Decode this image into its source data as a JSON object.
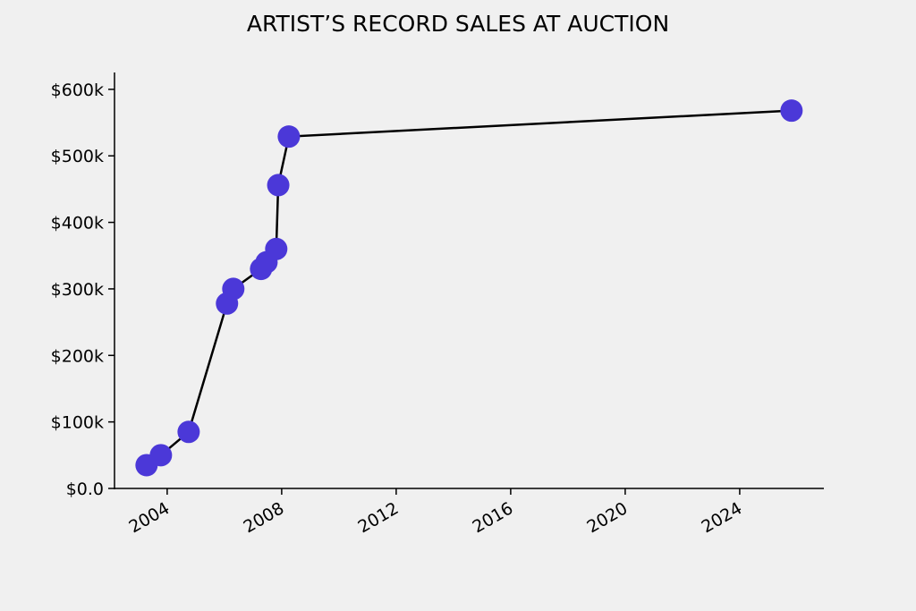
{
  "chart_data": {
    "type": "line",
    "title": "ARTIST’S RECORD SALES AT AUCTION",
    "x": [
      2003.28,
      2003.78,
      2004.75,
      2006.09,
      2006.31,
      2007.28,
      2007.47,
      2007.81,
      2007.88,
      2008.25,
      2025.81
    ],
    "values": [
      35000,
      50000,
      85000,
      278000,
      300000,
      330000,
      340000,
      360000,
      456000,
      529000,
      568000
    ],
    "color": "#4b38d8",
    "line_color": "#000000",
    "xlim": [
      2002.16,
      2026.94
    ],
    "xticks": [
      2004,
      2008,
      2012,
      2016,
      2020,
      2024
    ],
    "ylim": [
      0,
      624000
    ],
    "yticks": [
      {
        "value": 0,
        "label": "$0.0"
      },
      {
        "value": 100000,
        "label": "$100k"
      },
      {
        "value": 200000,
        "label": "$200k"
      },
      {
        "value": 300000,
        "label": "$300k"
      },
      {
        "value": 400000,
        "label": "$400k"
      },
      {
        "value": 500000,
        "label": "$500k"
      },
      {
        "value": 600000,
        "label": "$600k"
      }
    ],
    "grid": false
  }
}
